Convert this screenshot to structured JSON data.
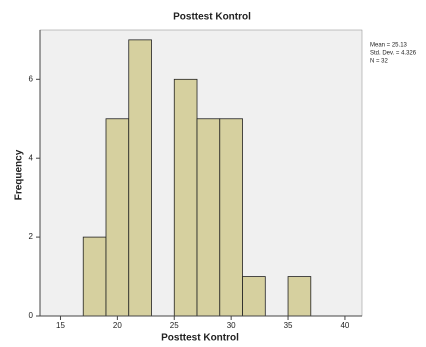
{
  "chart_data": {
    "type": "histogram",
    "title": "Posttest Kontrol",
    "x_label": "Posttest Kontrol",
    "y_label": "Frequency",
    "bins": [
      17,
      19,
      21,
      23,
      25,
      27,
      29,
      31,
      33,
      35,
      37
    ],
    "counts": [
      2,
      5,
      7,
      0,
      6,
      5,
      5,
      1,
      0,
      1
    ],
    "color": "#d6d09f",
    "xlim": [
      13.2,
      41.5
    ],
    "xticks": [
      15,
      20,
      25,
      30,
      35,
      40
    ],
    "ylim": [
      0,
      7.25
    ],
    "yticks": [
      0,
      2,
      4,
      6
    ],
    "annotations": [
      "Mean = 25.13",
      "Std. Dev. = 4.326",
      "N = 32"
    ]
  }
}
